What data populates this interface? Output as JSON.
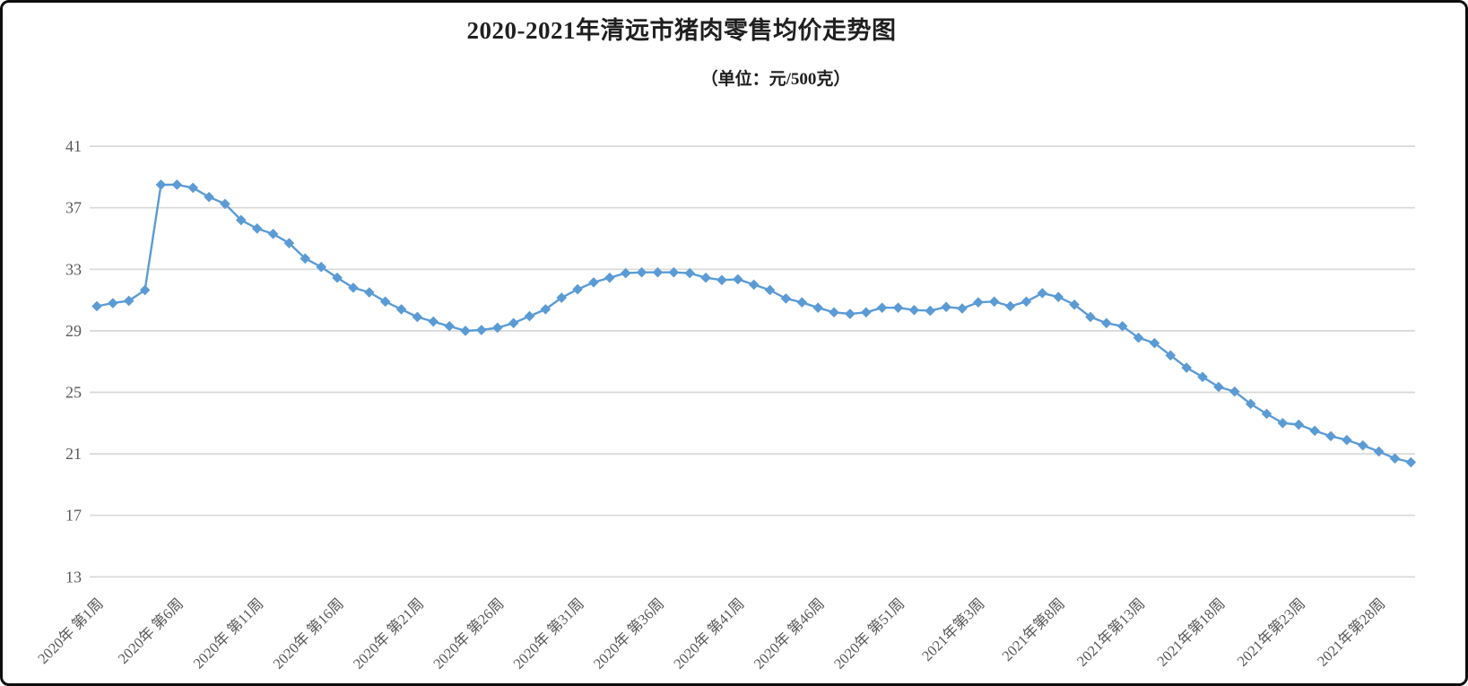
{
  "header": {
    "title": "2020-2021年清远市猪肉零售均价走势图",
    "unit_label": "（单位：元/500克）"
  },
  "colors": {
    "line": "#5B9BD5",
    "marker": "#5B9BD5",
    "grid": "#D9D9D9",
    "axis_text": "#595959",
    "title_text": "#1F1F1F",
    "background": "#FFFFFF",
    "border": "#0D0D0D"
  },
  "chart_data": {
    "type": "line",
    "title": "2020-2021年清远市猪肉零售均价走势图",
    "subtitle": "（单位：元/500克）",
    "xlabel": "",
    "ylabel": "",
    "ylim": [
      13,
      41
    ],
    "y_ticks": [
      13,
      17,
      21,
      25,
      29,
      33,
      37,
      41
    ],
    "grid": "horizontal",
    "legend": "none",
    "marker": "diamond",
    "x_tick_interval": 5,
    "x_tick_labels": [
      "2020年 第1周",
      "2020年 第6周",
      "2020年 第11周",
      "2020年 第16周",
      "2020年 第21周",
      "2020年 第26周",
      "2020年 第31周",
      "2020年 第36周",
      "2020年 第41周",
      "2020年 第46周",
      "2020年 第51周",
      "2021年第3周",
      "2021年第8周",
      "2021年第13周",
      "2021年第18周",
      "2021年第23周",
      "2021年第28周"
    ],
    "weeks_per_year": {
      "2020": 53,
      "2021": 30
    },
    "series": [
      {
        "values": [
          30.6,
          30.8,
          30.95,
          31.65,
          38.5,
          38.5,
          38.3,
          37.7,
          37.25,
          36.2,
          35.65,
          35.3,
          34.7,
          33.7,
          33.15,
          32.45,
          31.8,
          31.5,
          30.9,
          30.4,
          29.9,
          29.6,
          29.3,
          29.0,
          29.05,
          29.2,
          29.5,
          29.95,
          30.4,
          31.15,
          31.7,
          32.15,
          32.45,
          32.75,
          32.8,
          32.8,
          32.8,
          32.75,
          32.45,
          32.3,
          32.35,
          32.0,
          31.65,
          31.1,
          30.85,
          30.5,
          30.2,
          30.1,
          30.2,
          30.5,
          30.5,
          30.35,
          30.3,
          30.55,
          30.45,
          30.85,
          30.9,
          30.6,
          30.9,
          31.45,
          31.2,
          30.7,
          29.9,
          29.5,
          29.3,
          28.55,
          28.2,
          27.4,
          26.6,
          26.0,
          25.35,
          25.05,
          24.25,
          23.6,
          23.0,
          22.9,
          22.5,
          22.15,
          21.9,
          21.55,
          21.15,
          20.7,
          20.45
        ]
      }
    ]
  }
}
